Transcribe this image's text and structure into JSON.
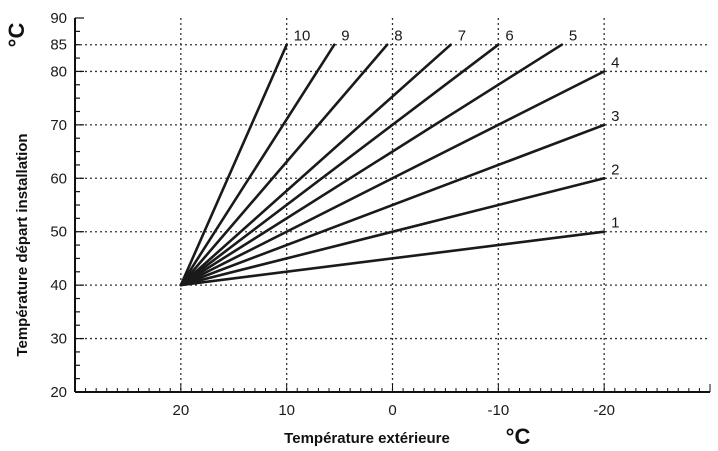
{
  "chart_data": {
    "type": "line",
    "title": "",
    "xlabel": "Température extérieure",
    "ylabel": "Température départ installation",
    "x_unit": "°C",
    "y_unit": "°C",
    "xlim": [
      30,
      -30
    ],
    "ylim": [
      20,
      90
    ],
    "x_ticks": [
      20,
      10,
      0,
      -10,
      -20
    ],
    "x_tick_labels": [
      "20",
      "10",
      "0",
      "-10",
      "-20"
    ],
    "y_ticks": [
      20,
      30,
      40,
      50,
      60,
      70,
      80,
      85,
      90
    ],
    "y_tick_labels": [
      "20",
      "30",
      "40",
      "50",
      "60",
      "70",
      "80",
      "85",
      "90"
    ],
    "grid": true,
    "series": [
      {
        "name": "1",
        "points": [
          [
            20,
            40
          ],
          [
            -20,
            50
          ]
        ]
      },
      {
        "name": "2",
        "points": [
          [
            20,
            40
          ],
          [
            -20,
            60
          ]
        ]
      },
      {
        "name": "3",
        "points": [
          [
            20,
            40
          ],
          [
            -20,
            70
          ]
        ]
      },
      {
        "name": "4",
        "points": [
          [
            20,
            40
          ],
          [
            -20,
            80
          ]
        ]
      },
      {
        "name": "5",
        "points": [
          [
            20,
            40
          ],
          [
            -16,
            85
          ]
        ]
      },
      {
        "name": "6",
        "points": [
          [
            20,
            40
          ],
          [
            -10,
            85
          ]
        ]
      },
      {
        "name": "7",
        "points": [
          [
            20,
            40
          ],
          [
            -5.5,
            85
          ]
        ]
      },
      {
        "name": "8",
        "points": [
          [
            20,
            40
          ],
          [
            0.5,
            85
          ]
        ]
      },
      {
        "name": "9",
        "points": [
          [
            20,
            40
          ],
          [
            5.5,
            85
          ]
        ]
      },
      {
        "name": "10",
        "points": [
          [
            20,
            40
          ],
          [
            10,
            85
          ]
        ]
      }
    ]
  }
}
